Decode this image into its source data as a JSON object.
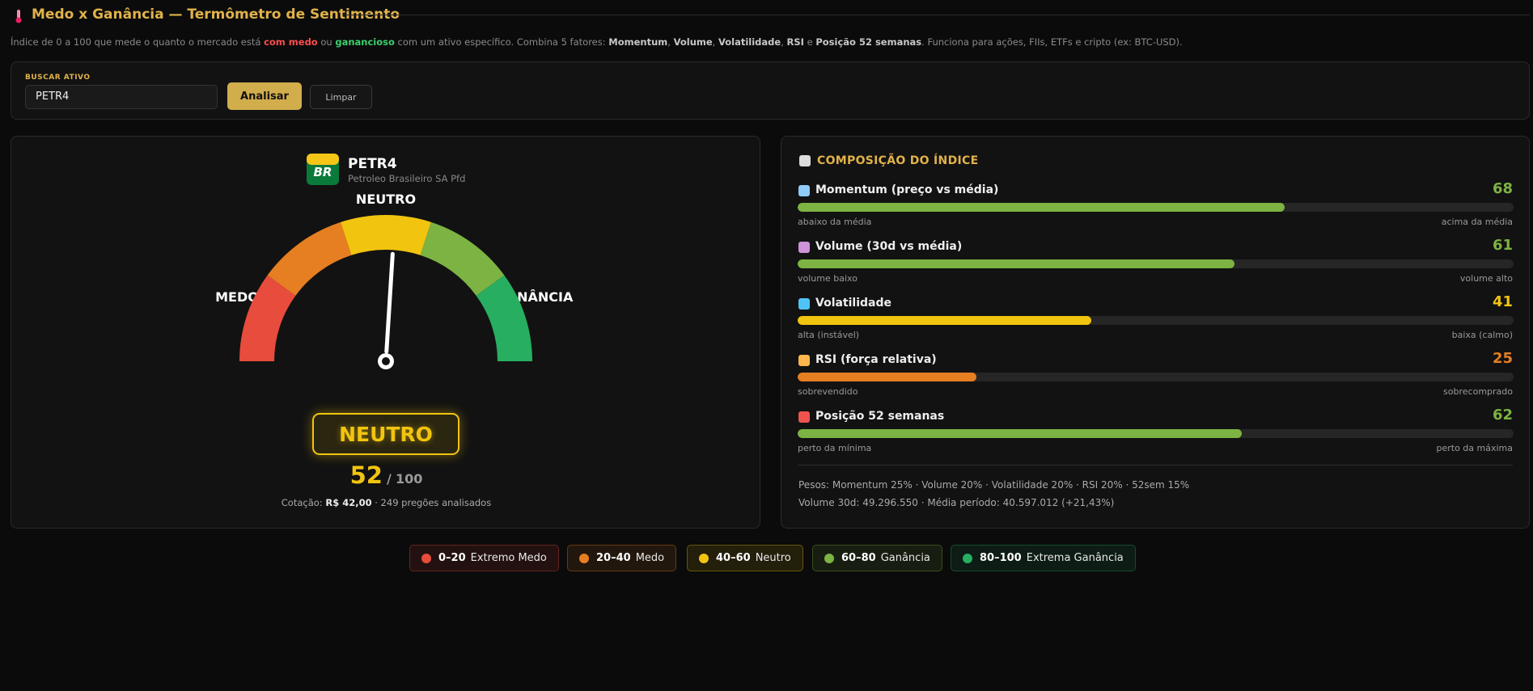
{
  "header": {
    "title": "Medo x Ganância — Termômetro de Sentimento",
    "description": [
      "Índice de 0 a 100 que mede o quanto o mercado está ",
      "com medo",
      " ou ",
      "ganancioso",
      " com um ativo específico. Combina 5 fatores: ",
      "Momentum",
      ", ",
      "Volume",
      ", ",
      "Volatilidade",
      ", ",
      "RSI",
      " e ",
      "Posição 52 semanas",
      ". Funciona para ações, FIIs, ETFs e cripto (ex: BTC-USD)."
    ]
  },
  "search": {
    "label": "BUSCAR ATIVO",
    "input_value": "PETR4",
    "analyze_button": "Analisar",
    "clear_button": "Limpar"
  },
  "asset": {
    "logo_text": "BR",
    "ticker": "PETR4",
    "name": "Petroleo Brasileiro SA Pfd"
  },
  "gauge": {
    "label_left": "MEDO",
    "label_top": "NEUTRO",
    "label_right": "GANÂNCIA",
    "status": "NEUTRO",
    "score": 52,
    "score_separator": "/",
    "score_max": 100,
    "quote_label": "Cotação:",
    "quote_price": "R$ 42,00",
    "quote_sessions": "· 249 pregões analisados"
  },
  "composition": {
    "title": "COMPOSIÇÃO DO ÍNDICE",
    "components": [
      {
        "name": "Momentum (preço vs média)",
        "value": 68,
        "color": "#7cb342",
        "low_label": "abaixo da média",
        "high_label": "acima da média"
      },
      {
        "name": "Volume (30d vs média)",
        "value": 61,
        "color": "#7cb342",
        "low_label": "volume baixo",
        "high_label": "volume alto"
      },
      {
        "name": "Volatilidade",
        "value": 41,
        "color": "#f1c40f",
        "low_label": "alta (instável)",
        "high_label": "baixa (calmo)"
      },
      {
        "name": "RSI (força relativa)",
        "value": 25,
        "color": "#e67e22",
        "low_label": "sobrevendido",
        "high_label": "sobrecomprado"
      },
      {
        "name": "Posição 52 semanas",
        "value": 62,
        "color": "#7cb342",
        "low_label": "perto da mínima",
        "high_label": "perto da máxima"
      }
    ],
    "weights": "Pesos: Momentum 25% · Volume 20% · Volatilidade 20% · RSI 20% · 52sem 15%",
    "volume_info": "Volume 30d: 49.296.550 · Média período: 40.597.012 (+21,43%)"
  },
  "legend": [
    {
      "range": "0–20",
      "label": "Extremo Medo",
      "color": "#e74c3c"
    },
    {
      "range": "20–40",
      "label": "Medo",
      "color": "#e67e22"
    },
    {
      "range": "40–60",
      "label": "Neutro",
      "color": "#f1c40f"
    },
    {
      "range": "60–80",
      "label": "Ganância",
      "color": "#7cb342"
    },
    {
      "range": "80–100",
      "label": "Extrema Ganância",
      "color": "#27ae60"
    }
  ]
}
